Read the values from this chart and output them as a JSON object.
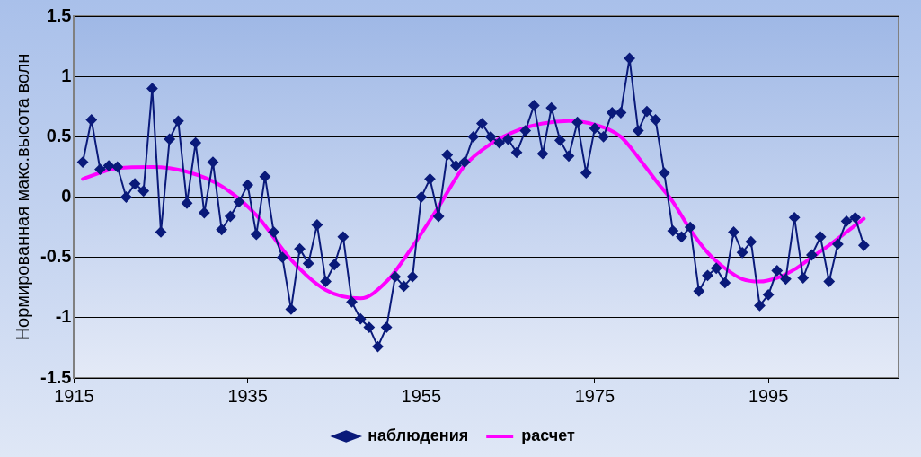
{
  "chart_data": {
    "type": "line",
    "ylabel": "Нормированная макс.высота волн",
    "x": [
      1916,
      1917,
      1918,
      1919,
      1920,
      1921,
      1922,
      1923,
      1924,
      1925,
      1926,
      1927,
      1928,
      1929,
      1930,
      1931,
      1932,
      1933,
      1934,
      1935,
      1936,
      1937,
      1938,
      1939,
      1940,
      1941,
      1942,
      1943,
      1944,
      1945,
      1946,
      1947,
      1948,
      1949,
      1950,
      1951,
      1952,
      1953,
      1954,
      1955,
      1956,
      1957,
      1958,
      1959,
      1960,
      1961,
      1962,
      1963,
      1964,
      1965,
      1966,
      1967,
      1968,
      1969,
      1970,
      1971,
      1972,
      1973,
      1974,
      1975,
      1976,
      1977,
      1978,
      1979,
      1980,
      1981,
      1982,
      1983,
      1984,
      1985,
      1986,
      1987,
      1988,
      1989,
      1990,
      1991,
      1992,
      1993,
      1994,
      1995,
      1996,
      1997,
      1998,
      1999,
      2000,
      2001,
      2002,
      2003,
      2004,
      2005,
      2006
    ],
    "series": [
      {
        "name": "наблюдения",
        "color": "#0a1a7a",
        "values": [
          0.29,
          0.64,
          0.23,
          0.26,
          0.25,
          0.0,
          0.11,
          0.05,
          0.9,
          -0.29,
          0.48,
          0.63,
          -0.05,
          0.45,
          -0.13,
          0.29,
          -0.27,
          -0.16,
          -0.04,
          0.1,
          -0.31,
          0.17,
          -0.29,
          -0.5,
          -0.93,
          -0.43,
          -0.55,
          -0.23,
          -0.7,
          -0.56,
          -0.33,
          -0.87,
          -1.01,
          -1.08,
          -1.24,
          -1.08,
          -0.66,
          -0.74,
          -0.66,
          0.0,
          0.15,
          -0.16,
          0.35,
          0.26,
          0.29,
          0.5,
          0.61,
          0.5,
          0.45,
          0.48,
          0.37,
          0.55,
          0.76,
          0.36,
          0.74,
          0.47,
          0.34,
          0.62,
          0.2,
          0.57,
          0.5,
          0.7,
          0.7,
          1.15,
          0.55,
          0.71,
          0.64,
          0.2,
          -0.28,
          -0.33,
          -0.25,
          -0.78,
          -0.65,
          -0.59,
          -0.71,
          -0.29,
          -0.46,
          -0.37,
          -0.9,
          -0.81,
          -0.61,
          -0.68,
          -0.17,
          -0.67,
          -0.48,
          -0.33,
          -0.7,
          -0.39,
          -0.2,
          -0.17,
          -0.4
        ]
      },
      {
        "name": "расчет",
        "color": "#ff00ff",
        "marker": "none",
        "x": [
          1916,
          1920,
          1924,
          1928,
          1932,
          1936,
          1940,
          1944,
          1948,
          1951,
          1954,
          1957,
          1960,
          1963,
          1966,
          1969,
          1972,
          1975,
          1978,
          1980,
          1982,
          1984,
          1986,
          1988,
          1990,
          1992,
          1994,
          1996,
          1998,
          2000,
          2002,
          2004,
          2006
        ],
        "values": [
          0.15,
          0.24,
          0.25,
          0.21,
          0.09,
          -0.15,
          -0.52,
          -0.77,
          -0.84,
          -0.7,
          -0.41,
          -0.08,
          0.26,
          0.44,
          0.55,
          0.61,
          0.63,
          0.6,
          0.5,
          0.33,
          0.14,
          -0.04,
          -0.27,
          -0.46,
          -0.59,
          -0.68,
          -0.7,
          -0.67,
          -0.6,
          -0.5,
          -0.4,
          -0.29,
          -0.18
        ]
      }
    ],
    "xlim": [
      1915,
      2010
    ],
    "xticks": [
      1915,
      1935,
      1955,
      1975,
      1995
    ],
    "ylim": [
      -1.5,
      1.5
    ],
    "yticks": [
      -1.5,
      -1,
      -0.5,
      0,
      0.5,
      1,
      1.5
    ],
    "grid": "y",
    "legend": "bottom",
    "line_style": "solid",
    "marker": "diamond"
  }
}
